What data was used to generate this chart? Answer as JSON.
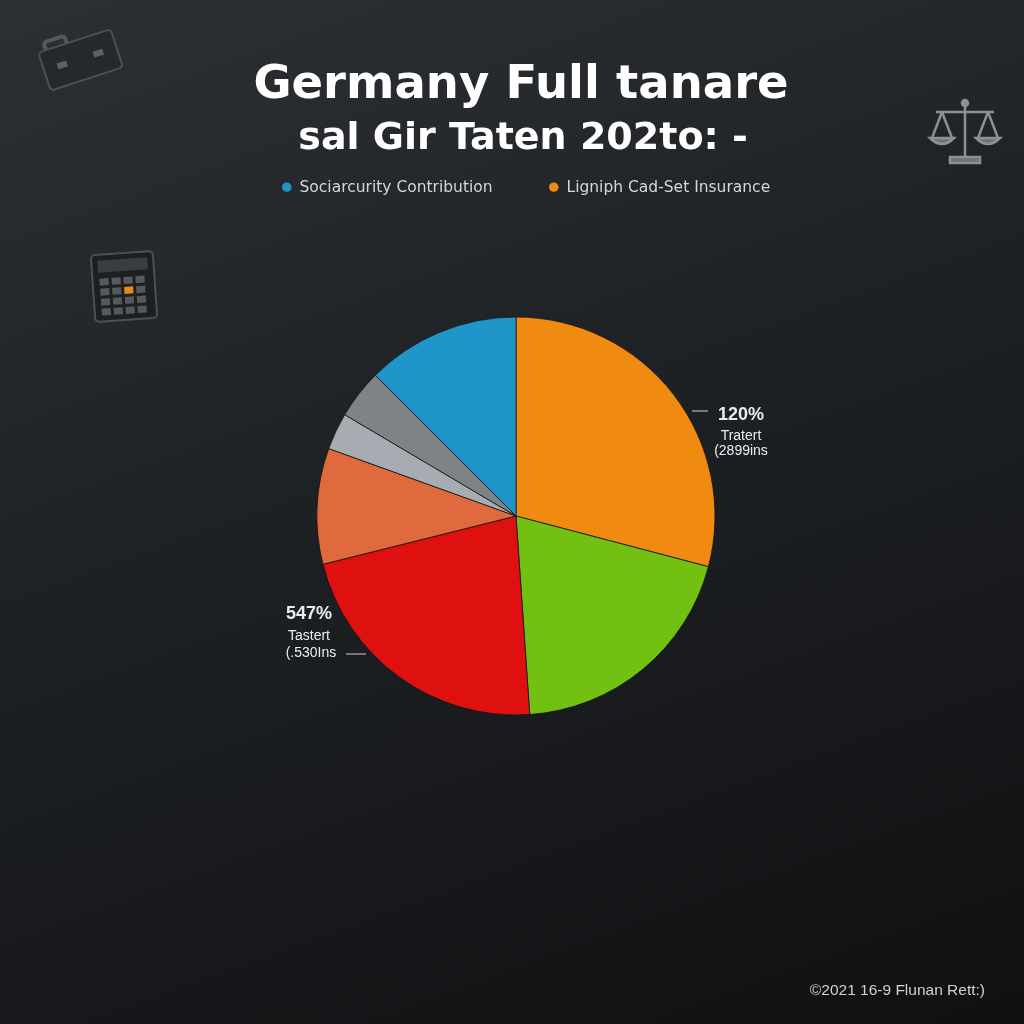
{
  "chart_data": {
    "type": "pie",
    "title": "Germany Full tanare",
    "subtitle": "sal Gir Taten 202to: -",
    "categories": [
      "Ligniph Cad-Set Insurance",
      null,
      null,
      null,
      null,
      null,
      "Sociarcurity Contribution"
    ],
    "values": [
      29.1,
      19.8,
      22.2,
      9.4,
      3.0,
      4.0,
      12.5
    ],
    "colors": [
      "#f18a10",
      "#72c012",
      "#df1010",
      "#de6a3e",
      "#a6acb1",
      "#7f8386",
      "#1f95c9"
    ],
    "legend": "top",
    "annotations": [
      "120%",
      "Tratert",
      "(2899ins",
      "547%",
      "Tastert",
      "(.530Ins",
      "©2021 16-9 Flunan Rett:)"
    ]
  }
}
